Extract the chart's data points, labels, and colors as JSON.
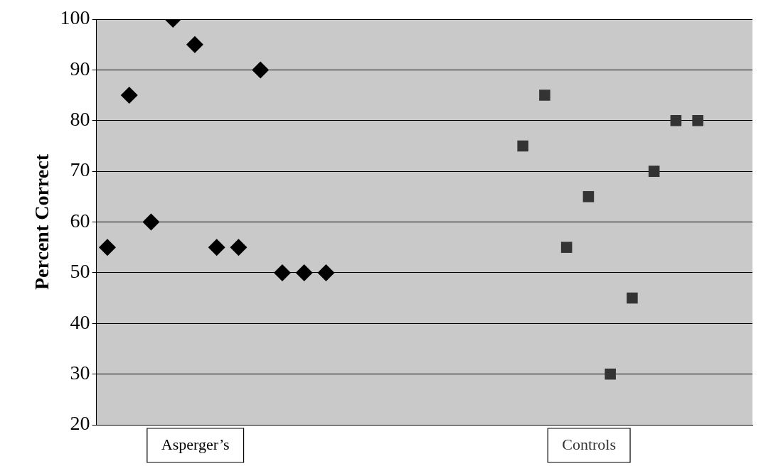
{
  "chart_data": {
    "type": "scatter",
    "ylabel": "Percent Correct",
    "categories": [
      null,
      null,
      null,
      null,
      null,
      null,
      null,
      null,
      null,
      null,
      null,
      null,
      null,
      null,
      null,
      null,
      null,
      null,
      null,
      null,
      null,
      null,
      null,
      null,
      null,
      null,
      null,
      null,
      null,
      null
    ],
    "series": [
      {
        "name": "Asperger’s",
        "color": "#000000",
        "marker": "diamond",
        "values": [
          55,
          85,
          60,
          100,
          95,
          55,
          55,
          90,
          50,
          50,
          50,
          null,
          null,
          null,
          null,
          null,
          null,
          null,
          null,
          null,
          null,
          null,
          null,
          null,
          null,
          null,
          null,
          null,
          null,
          null
        ]
      },
      {
        "name": "Controls",
        "color": "#333333",
        "marker": "square",
        "values": [
          null,
          null,
          null,
          null,
          null,
          null,
          null,
          null,
          null,
          null,
          null,
          null,
          null,
          null,
          null,
          null,
          null,
          null,
          null,
          75,
          85,
          55,
          65,
          30,
          45,
          70,
          80,
          80,
          null,
          null
        ]
      }
    ],
    "ylim": [
      20,
      100
    ],
    "yticks": [
      20,
      30,
      40,
      50,
      60,
      70,
      80,
      90,
      100
    ],
    "grid": "y",
    "legend": false,
    "tick_labels": "y"
  }
}
